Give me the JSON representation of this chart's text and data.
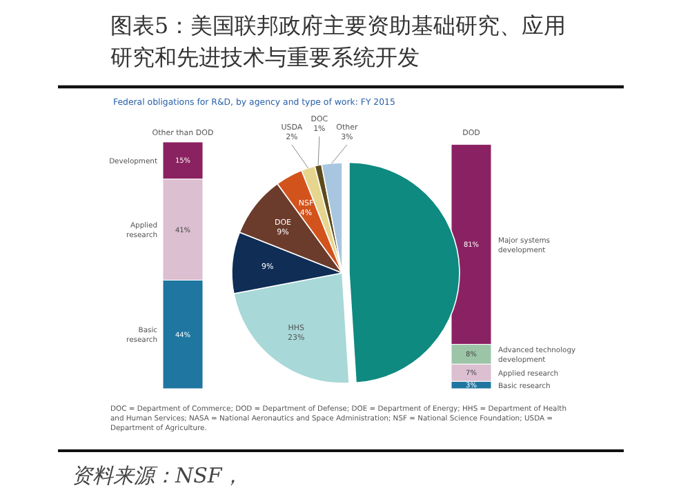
{
  "chart_data": [
    {
      "type": "bar",
      "title": "图表5：美国联邦政府主要资助基础研究、应用研究和先进技术与重要系统开发",
      "subtitle": "Federal obligations for R&D, by agency and type of work: FY 2015",
      "stacked": true,
      "categories": [
        "Other than DOD",
        "DOD"
      ],
      "series": [
        {
          "name": "Basic research",
          "color": "#1f76a0",
          "values": [
            44,
            3
          ],
          "value_labels": [
            "44%",
            "3%"
          ]
        },
        {
          "name": "Applied research",
          "color": "#dcbfd0",
          "values": [
            41,
            7
          ],
          "value_labels": [
            "41%",
            "7%"
          ]
        },
        {
          "name": "Development",
          "color": "#8a2160",
          "values": [
            15,
            null
          ],
          "value_labels": [
            "15%",
            null
          ]
        },
        {
          "name": "Advanced technology development",
          "color": "#9cc5a8",
          "values": [
            null,
            8
          ],
          "value_labels": [
            null,
            "8%"
          ]
        },
        {
          "name": "Major systems development",
          "color": "#8a2163",
          "values": [
            null,
            81
          ],
          "value_labels": [
            null,
            "81%"
          ]
        }
      ],
      "annotations": [
        "DOC = Department of Commerce; DOD = Department of Defense; DOE = Department of Energy; HHS = Department of Health and Human Services; NASA = National Aeronautics and Space Administration; NSF = National Science Foundation; USDA = Department of Agriculture.",
        "资料来源：NSF，"
      ]
    },
    {
      "type": "pie",
      "categories": [
        null,
        "HHS",
        null,
        "DOE",
        "NSF",
        "USDA",
        "DOC",
        "Other"
      ],
      "values": [
        49,
        23,
        9,
        9,
        4,
        2,
        1,
        3
      ],
      "value_labels": [
        null,
        "23%",
        "9%",
        "9%",
        "4%",
        "2%",
        "1%",
        "3%"
      ],
      "colors": [
        "#0e8a80",
        "#a8d8d8",
        "#0f2d55",
        "#6b3b2b",
        "#d2531c",
        "#e6d58e",
        "#5c4a1a",
        "#a9c6e0"
      ]
    }
  ]
}
